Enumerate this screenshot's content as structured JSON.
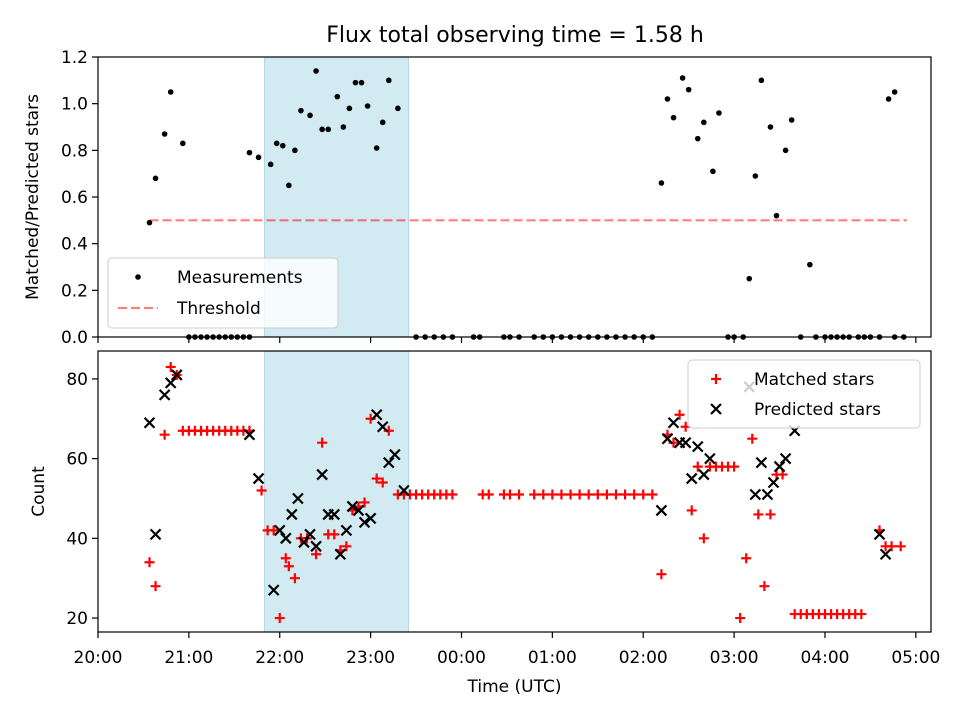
{
  "figure_title": "Flux total observing time = 1.58 h",
  "colors": {
    "highlight": "#add8e6",
    "measurement": "#000000",
    "threshold": "#ff0000",
    "matched": "#ff0000",
    "predicted": "#000000"
  },
  "chart_data": [
    {
      "type": "scatter",
      "title": "Flux total observing time = 1.58 h",
      "xlabel": "",
      "ylabel": "Matched/Predicted stars",
      "xlim": [
        "20:00",
        "05:10"
      ],
      "ylim": [
        0,
        1.2
      ],
      "yticks": [
        "0.0",
        "0.2",
        "0.4",
        "0.6",
        "0.8",
        "1.0",
        "1.2"
      ],
      "highlight_span": [
        "21:50",
        "23:25"
      ],
      "legend_position": "lower-left",
      "threshold": {
        "name": "Threshold",
        "y": 0.5,
        "x_range": [
          "20:34",
          "04:54"
        ]
      },
      "series": [
        {
          "name": "Measurements",
          "points": [
            [
              "20:34",
              0.49
            ],
            [
              "20:38",
              0.68
            ],
            [
              "20:44",
              0.87
            ],
            [
              "20:48",
              1.05
            ],
            [
              "20:56",
              0.83
            ],
            [
              "21:00",
              0.0
            ],
            [
              "21:04",
              0.0
            ],
            [
              "21:08",
              0.0
            ],
            [
              "21:12",
              0.0
            ],
            [
              "21:16",
              0.0
            ],
            [
              "21:20",
              0.0
            ],
            [
              "21:24",
              0.0
            ],
            [
              "21:28",
              0.0
            ],
            [
              "21:32",
              0.0
            ],
            [
              "21:36",
              0.0
            ],
            [
              "21:40",
              0.0
            ],
            [
              "21:40",
              0.79
            ],
            [
              "21:46",
              0.77
            ],
            [
              "21:54",
              0.74
            ],
            [
              "21:58",
              0.83
            ],
            [
              "22:02",
              0.82
            ],
            [
              "22:06",
              0.65
            ],
            [
              "22:10",
              0.8
            ],
            [
              "22:14",
              0.97
            ],
            [
              "22:20",
              0.95
            ],
            [
              "22:24",
              1.14
            ],
            [
              "22:28",
              0.89
            ],
            [
              "22:32",
              0.89
            ],
            [
              "22:38",
              1.03
            ],
            [
              "22:42",
              0.9
            ],
            [
              "22:46",
              0.98
            ],
            [
              "22:50",
              1.09
            ],
            [
              "22:54",
              1.09
            ],
            [
              "22:58",
              0.99
            ],
            [
              "23:04",
              0.81
            ],
            [
              "23:08",
              0.92
            ],
            [
              "23:12",
              1.1
            ],
            [
              "23:18",
              0.98
            ],
            [
              "23:30",
              0.0
            ],
            [
              "23:36",
              0.0
            ],
            [
              "23:42",
              0.0
            ],
            [
              "23:48",
              0.0
            ],
            [
              "23:54",
              0.0
            ],
            [
              "00:08",
              0.0
            ],
            [
              "00:12",
              0.0
            ],
            [
              "00:28",
              0.0
            ],
            [
              "00:32",
              0.0
            ],
            [
              "00:38",
              0.0
            ],
            [
              "00:48",
              0.0
            ],
            [
              "00:54",
              0.0
            ],
            [
              "01:00",
              0.0
            ],
            [
              "01:06",
              0.0
            ],
            [
              "01:12",
              0.0
            ],
            [
              "01:18",
              0.0
            ],
            [
              "01:24",
              0.0
            ],
            [
              "01:30",
              0.0
            ],
            [
              "01:36",
              0.0
            ],
            [
              "01:42",
              0.0
            ],
            [
              "01:48",
              0.0
            ],
            [
              "01:54",
              0.0
            ],
            [
              "02:00",
              0.0
            ],
            [
              "02:06",
              0.0
            ],
            [
              "02:12",
              0.66
            ],
            [
              "02:16",
              1.02
            ],
            [
              "02:20",
              0.94
            ],
            [
              "02:26",
              1.11
            ],
            [
              "02:30",
              1.06
            ],
            [
              "02:36",
              0.85
            ],
            [
              "02:40",
              0.92
            ],
            [
              "02:46",
              0.71
            ],
            [
              "02:50",
              0.96
            ],
            [
              "02:56",
              0.0
            ],
            [
              "03:00",
              0.0
            ],
            [
              "03:06",
              0.0
            ],
            [
              "03:10",
              0.25
            ],
            [
              "03:14",
              0.69
            ],
            [
              "03:18",
              1.1
            ],
            [
              "03:24",
              0.9
            ],
            [
              "03:28",
              0.52
            ],
            [
              "03:34",
              0.8
            ],
            [
              "03:38",
              0.93
            ],
            [
              "03:50",
              0.31
            ],
            [
              "03:44",
              0.0
            ],
            [
              "03:54",
              0.0
            ],
            [
              "04:00",
              0.0
            ],
            [
              "04:04",
              0.0
            ],
            [
              "04:08",
              0.0
            ],
            [
              "04:12",
              0.0
            ],
            [
              "04:16",
              0.0
            ],
            [
              "04:22",
              0.0
            ],
            [
              "04:26",
              0.0
            ],
            [
              "04:30",
              0.0
            ],
            [
              "04:36",
              0.0
            ],
            [
              "04:46",
              0.0
            ],
            [
              "04:52",
              0.0
            ],
            [
              "04:42",
              1.02
            ],
            [
              "04:46",
              1.05
            ]
          ]
        }
      ]
    },
    {
      "type": "scatter",
      "xlabel": "Time (UTC)",
      "ylabel": "Count",
      "xlim": [
        "20:00",
        "05:10"
      ],
      "ylim": [
        16.5,
        87
      ],
      "yticks": [
        "20",
        "40",
        "60",
        "80"
      ],
      "xticks": [
        "20:00",
        "21:00",
        "22:00",
        "23:00",
        "00:00",
        "01:00",
        "02:00",
        "03:00",
        "04:00",
        "05:00"
      ],
      "highlight_span": [
        "21:50",
        "23:25"
      ],
      "legend_position": "upper-right",
      "series": [
        {
          "name": "Matched stars",
          "marker": "plus",
          "points": [
            [
              "20:34",
              34
            ],
            [
              "20:38",
              28
            ],
            [
              "20:44",
              66
            ],
            [
              "20:48",
              83
            ],
            [
              "20:52",
              81
            ],
            [
              "20:56",
              67
            ],
            [
              "21:00",
              67
            ],
            [
              "21:04",
              67
            ],
            [
              "21:08",
              67
            ],
            [
              "21:12",
              67
            ],
            [
              "21:16",
              67
            ],
            [
              "21:20",
              67
            ],
            [
              "21:24",
              67
            ],
            [
              "21:28",
              67
            ],
            [
              "21:32",
              67
            ],
            [
              "21:36",
              67
            ],
            [
              "21:40",
              67
            ],
            [
              "21:48",
              52
            ],
            [
              "21:52",
              42
            ],
            [
              "21:56",
              42
            ],
            [
              "22:00",
              20
            ],
            [
              "22:04",
              35
            ],
            [
              "22:06",
              33
            ],
            [
              "22:10",
              30
            ],
            [
              "22:14",
              40
            ],
            [
              "22:18",
              40
            ],
            [
              "22:24",
              36
            ],
            [
              "22:28",
              64
            ],
            [
              "22:32",
              41
            ],
            [
              "22:36",
              41
            ],
            [
              "22:40",
              37
            ],
            [
              "22:44",
              38
            ],
            [
              "22:48",
              47
            ],
            [
              "22:52",
              48
            ],
            [
              "22:56",
              49
            ],
            [
              "23:00",
              70
            ],
            [
              "23:04",
              55
            ],
            [
              "23:08",
              54
            ],
            [
              "23:12",
              67
            ],
            [
              "23:18",
              51
            ],
            [
              "23:22",
              51
            ],
            [
              "23:26",
              51
            ],
            [
              "23:30",
              51
            ],
            [
              "23:34",
              51
            ],
            [
              "23:38",
              51
            ],
            [
              "23:42",
              51
            ],
            [
              "23:46",
              51
            ],
            [
              "23:50",
              51
            ],
            [
              "23:54",
              51
            ],
            [
              "00:14",
              51
            ],
            [
              "00:18",
              51
            ],
            [
              "00:28",
              51
            ],
            [
              "00:32",
              51
            ],
            [
              "00:38",
              51
            ],
            [
              "00:48",
              51
            ],
            [
              "00:54",
              51
            ],
            [
              "01:00",
              51
            ],
            [
              "01:06",
              51
            ],
            [
              "01:12",
              51
            ],
            [
              "01:18",
              51
            ],
            [
              "01:24",
              51
            ],
            [
              "01:30",
              51
            ],
            [
              "01:36",
              51
            ],
            [
              "01:42",
              51
            ],
            [
              "01:48",
              51
            ],
            [
              "01:54",
              51
            ],
            [
              "02:00",
              51
            ],
            [
              "02:06",
              51
            ],
            [
              "02:12",
              31
            ],
            [
              "02:16",
              66
            ],
            [
              "02:20",
              64
            ],
            [
              "02:24",
              71
            ],
            [
              "02:28",
              68
            ],
            [
              "02:32",
              47
            ],
            [
              "02:36",
              58
            ],
            [
              "02:40",
              40
            ],
            [
              "02:44",
              58
            ],
            [
              "02:48",
              58
            ],
            [
              "02:52",
              58
            ],
            [
              "02:56",
              58
            ],
            [
              "03:00",
              58
            ],
            [
              "03:04",
              20
            ],
            [
              "03:08",
              35
            ],
            [
              "03:12",
              65
            ],
            [
              "03:16",
              46
            ],
            [
              "03:20",
              28
            ],
            [
              "03:24",
              46
            ],
            [
              "03:28",
              56
            ],
            [
              "03:32",
              56
            ],
            [
              "03:40",
              21
            ],
            [
              "03:44",
              21
            ],
            [
              "03:48",
              21
            ],
            [
              "03:52",
              21
            ],
            [
              "03:56",
              21
            ],
            [
              "04:00",
              21
            ],
            [
              "04:04",
              21
            ],
            [
              "04:08",
              21
            ],
            [
              "04:12",
              21
            ],
            [
              "04:16",
              21
            ],
            [
              "04:20",
              21
            ],
            [
              "04:24",
              21
            ],
            [
              "04:36",
              42
            ],
            [
              "04:40",
              38
            ],
            [
              "04:44",
              38
            ],
            [
              "04:50",
              38
            ]
          ]
        },
        {
          "name": "Predicted stars",
          "marker": "x",
          "points": [
            [
              "20:34",
              69
            ],
            [
              "20:38",
              41
            ],
            [
              "20:44",
              76
            ],
            [
              "20:48",
              79
            ],
            [
              "20:52",
              81
            ],
            [
              "21:40",
              66
            ],
            [
              "21:46",
              55
            ],
            [
              "21:56",
              27
            ],
            [
              "22:00",
              42
            ],
            [
              "22:04",
              40
            ],
            [
              "22:08",
              46
            ],
            [
              "22:12",
              50
            ],
            [
              "22:16",
              39
            ],
            [
              "22:20",
              41
            ],
            [
              "22:24",
              38
            ],
            [
              "22:28",
              56
            ],
            [
              "22:32",
              46
            ],
            [
              "22:36",
              46
            ],
            [
              "22:40",
              36
            ],
            [
              "22:44",
              42
            ],
            [
              "22:48",
              48
            ],
            [
              "22:52",
              47
            ],
            [
              "22:56",
              44
            ],
            [
              "23:00",
              45
            ],
            [
              "23:04",
              71
            ],
            [
              "23:08",
              68
            ],
            [
              "23:12",
              59
            ],
            [
              "23:16",
              61
            ],
            [
              "23:22",
              52
            ],
            [
              "02:12",
              47
            ],
            [
              "02:16",
              65
            ],
            [
              "02:20",
              69
            ],
            [
              "02:24",
              64
            ],
            [
              "02:28",
              64
            ],
            [
              "02:32",
              55
            ],
            [
              "02:36",
              63
            ],
            [
              "02:40",
              56
            ],
            [
              "02:44",
              60
            ],
            [
              "03:10",
              78
            ],
            [
              "03:14",
              51
            ],
            [
              "03:18",
              59
            ],
            [
              "03:22",
              51
            ],
            [
              "03:26",
              54
            ],
            [
              "03:30",
              58
            ],
            [
              "03:34",
              60
            ],
            [
              "03:40",
              67
            ],
            [
              "04:36",
              41
            ],
            [
              "04:40",
              36
            ]
          ]
        }
      ]
    }
  ]
}
